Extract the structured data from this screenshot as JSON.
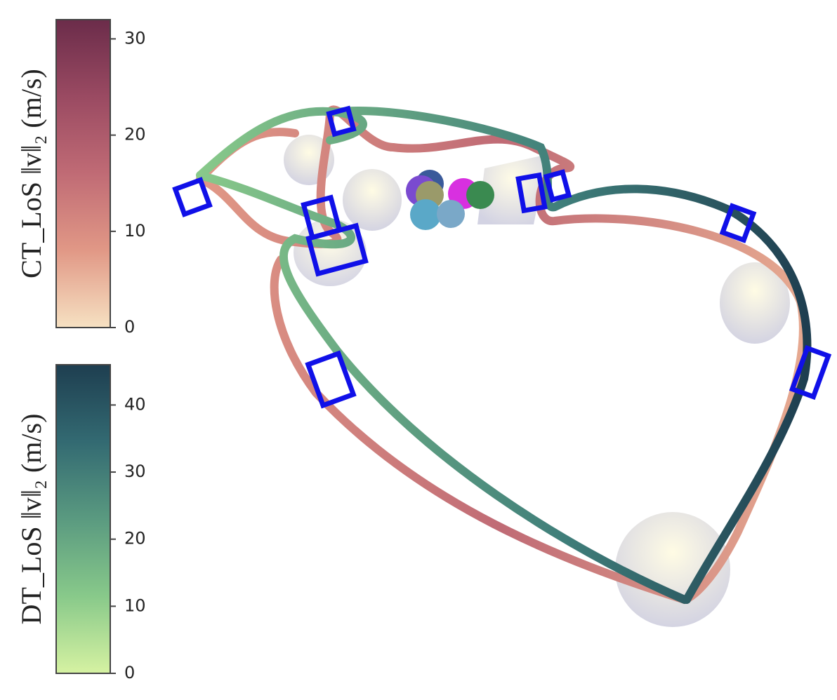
{
  "chart_data": [
    {
      "type": "colorbar",
      "label": "CT_LoS ‖v‖₂ (m/s)",
      "ylim": [
        0,
        32
      ],
      "yticks": [
        0,
        10,
        20,
        30
      ],
      "colors": [
        "#f6e1c2",
        "#e19886",
        "#c06b75",
        "#9a4a62",
        "#6b2c4a"
      ]
    },
    {
      "type": "colorbar",
      "label": "DT_LoS ‖v‖₂ (m/s)",
      "ylim": [
        0,
        46
      ],
      "yticks": [
        0,
        10,
        20,
        30,
        40
      ],
      "colors": [
        "#d6f2a2",
        "#88c98a",
        "#5a9a80",
        "#336a72",
        "#1e3e50"
      ]
    }
  ]
}
